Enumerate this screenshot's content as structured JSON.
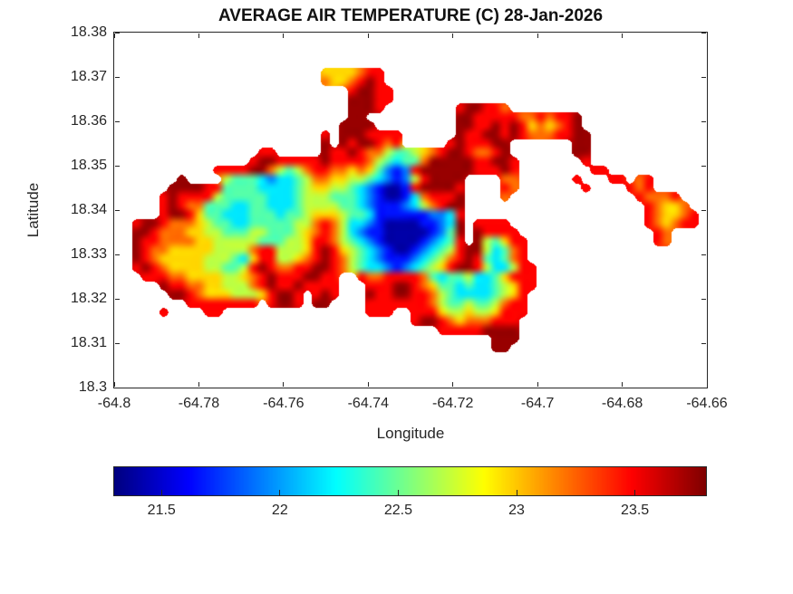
{
  "figure": {
    "title": "AVERAGE AIR TEMPERATURE (C) 28-Jan-2026",
    "xlabel": "Longitude",
    "ylabel": "Latitude"
  },
  "chart_data": {
    "type": "heatmap",
    "title": "AVERAGE AIR TEMPERATURE (C) 28-Jan-2026",
    "xlabel": "Longitude",
    "ylabel": "Latitude",
    "x_range": [
      -64.8,
      -64.66
    ],
    "y_range": [
      18.3,
      18.38
    ],
    "x_ticks": [
      -64.8,
      -64.78,
      -64.76,
      -64.74,
      -64.72,
      -64.7,
      -64.68,
      -64.66
    ],
    "x_tick_labels": [
      "-64.8",
      "-64.78",
      "-64.76",
      "-64.74",
      "-64.72",
      "-64.7",
      "-64.68",
      "-64.66"
    ],
    "y_ticks": [
      18.3,
      18.31,
      18.32,
      18.33,
      18.34,
      18.35,
      18.36,
      18.37,
      18.38
    ],
    "y_tick_labels": [
      "18.3",
      "18.31",
      "18.32",
      "18.33",
      "18.34",
      "18.35",
      "18.36",
      "18.37",
      "18.38"
    ],
    "colorbar": {
      "colormap": "jet",
      "min": 21.3,
      "max": 23.8,
      "ticks": [
        21.5,
        22,
        22.5,
        23,
        23.5
      ],
      "tick_labels": [
        "21.5",
        "22",
        "22.5",
        "23",
        "23.5"
      ]
    },
    "grid_encoding": {
      "sea_char": ".",
      "value_min": 21.4,
      "value_step": 0.26,
      "note": "temperature C = value_min + digit*value_step; '.' = sea (no data)"
    },
    "grid": [
      "..................................................................",
      "..................................................................",
      "..................................................................",
      "..................................................................",
      ".......................6666788....................................",
      ".......................7667898....................................",
      "..........................89988...................................",
      "..........................99988...................................",
      "..........................9998........899887......................",
      "..........................99..........99888887787889..............",
      ".........................9999.........99889898676789..............",
      ".......................8.9998888......988998987778899.............",
      ".......................9.9899878.....8988899.......99.............",
      "................88.....988987754456789987789.......99.............",
      "...............899888889888875434479999988998.......8.............",
      "...........8888997545788776764212899999988898........88...........",
      ".......9....544432334577665543212589999....77......8...88.78......",
      "......999988444433334566554321001899998....87.......8....878......",
      ".....8988885444443334555444321001378889....7..............87778...",
      ".....8987744433443334555544321112357899....................87667..",
      ".....8998644333444344566654431111112238....................876678.",
      "..8998777654433444445578753321000011239.8888...............876788.",
      "..9987776655444554445678753211000001249.98888...............87....",
      "..9887777665555544455688754321000012348.954688..............87....",
      "..98776666655557885556898654321001234589953478....................",
      "..98766666555436885567898754321112345789843478....................",
      "..898766665544589877889987543321234568998533588...................",
      "...8887766665567898889988..87788887434453346888...................",
      ".....98877665557898898888...8889987644343345688...................",
      "......998766655568998.898...988998875433334568....................",
      "........88888888.8998.99....888888875445445788....................",
      ".....8....88................888..8886556556888....................",
      ".................................899876777888.....................",
      "....................................888889999.....................",
      "..........................................999.....................",
      "..........................................99......................",
      "..................................................................",
      "..................................................................",
      "..................................................................",
      ".................................................................."
    ]
  }
}
